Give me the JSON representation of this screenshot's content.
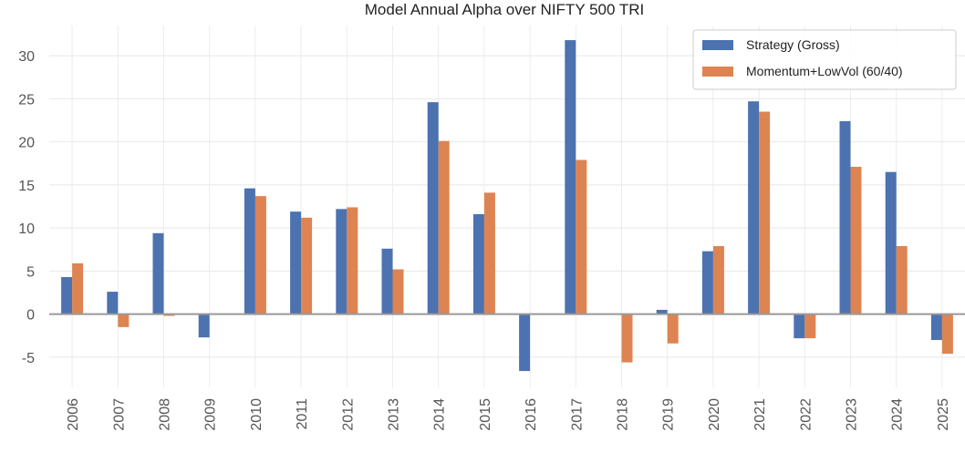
{
  "chart_data": {
    "type": "bar",
    "title": "Model Annual Alpha over NIFTY 500 TRI",
    "xlabel": "",
    "ylabel": "",
    "categories": [
      "2006",
      "2007",
      "2008",
      "2009",
      "2010",
      "2011",
      "2012",
      "2013",
      "2014",
      "2015",
      "2016",
      "2017",
      "2018",
      "2019",
      "2020",
      "2021",
      "2022",
      "2023",
      "2024",
      "2025"
    ],
    "series": [
      {
        "name": "Strategy (Gross)",
        "color": "#4c72b0",
        "values": [
          4.3,
          2.6,
          9.4,
          -2.7,
          14.6,
          11.9,
          12.2,
          7.6,
          24.6,
          11.6,
          -6.6,
          31.8,
          0.0,
          0.5,
          7.3,
          24.7,
          -2.8,
          22.4,
          16.5,
          -3.0
        ]
      },
      {
        "name": "Momentum+LowVol (60/40)",
        "color": "#dd8452",
        "values": [
          5.9,
          -1.5,
          -0.2,
          0.0,
          13.7,
          11.2,
          12.4,
          5.2,
          20.1,
          14.1,
          0.0,
          17.9,
          -5.6,
          -3.4,
          7.9,
          23.5,
          -2.8,
          17.1,
          7.9,
          -4.6
        ]
      }
    ],
    "ylim": [
      -8.5,
      33.5
    ],
    "yticks": [
      -5,
      0,
      5,
      10,
      15,
      20,
      25,
      30
    ],
    "grid": true,
    "legend_position": "top-right"
  }
}
